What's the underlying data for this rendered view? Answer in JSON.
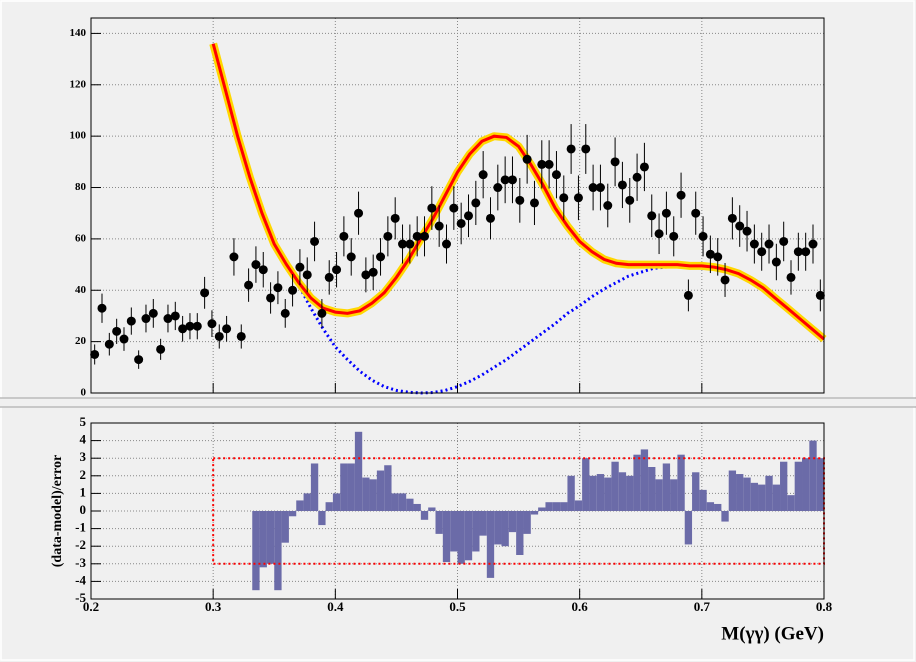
{
  "chart_data": [
    {
      "type": "scatter",
      "color": "#000000",
      "bins": [
        0.2,
        0.206,
        0.212,
        0.218,
        0.224,
        0.23,
        0.236,
        0.242,
        0.248,
        0.254,
        0.26,
        0.266,
        0.272,
        0.278,
        0.284,
        0.29,
        0.296,
        0.302,
        0.308,
        0.314,
        0.32,
        0.326,
        0.332,
        0.338,
        0.344,
        0.35,
        0.356,
        0.362,
        0.368,
        0.374,
        0.38,
        0.386,
        0.392,
        0.398,
        0.404,
        0.41,
        0.416,
        0.422,
        0.428,
        0.434,
        0.44,
        0.446,
        0.452,
        0.458,
        0.464,
        0.47,
        0.476,
        0.482,
        0.488,
        0.494,
        0.5,
        0.506,
        0.512,
        0.518,
        0.524,
        0.53,
        0.536,
        0.542,
        0.548,
        0.554,
        0.56,
        0.566,
        0.572,
        0.578,
        0.584,
        0.59,
        0.596,
        0.602,
        0.608,
        0.614,
        0.62,
        0.626,
        0.632,
        0.638,
        0.644,
        0.65,
        0.656,
        0.662,
        0.668,
        0.674,
        0.68,
        0.686,
        0.692,
        0.698,
        0.704,
        0.71,
        0.716,
        0.722,
        0.728,
        0.734,
        0.74,
        0.746,
        0.752,
        0.758,
        0.764,
        0.77,
        0.776,
        0.782,
        0.788,
        0.794,
        0.8
      ],
      "values": [
        15,
        33,
        19,
        24,
        21,
        28,
        13,
        29,
        31,
        17,
        29,
        30,
        25,
        26,
        26,
        39,
        27,
        22,
        25,
        53,
        22,
        42,
        50,
        48,
        37,
        41,
        31,
        40,
        49,
        46,
        59,
        31,
        45,
        48,
        61,
        53,
        70,
        46,
        47,
        53,
        61,
        68,
        58,
        58,
        61,
        61,
        72,
        65,
        58,
        72,
        66,
        69,
        74,
        85,
        68,
        80,
        83,
        83,
        75,
        91,
        74,
        89,
        89,
        85,
        76,
        95,
        76,
        95,
        80,
        80,
        73,
        90,
        81,
        75,
        84,
        88,
        69,
        62,
        70,
        61,
        77,
        38,
        70,
        61,
        54,
        53,
        44,
        68,
        65,
        63,
        58,
        55,
        58,
        51,
        59,
        45,
        55,
        55,
        58,
        38
      ],
      "errors": [
        3.9,
        5.7,
        4.4,
        4.9,
        4.6,
        5.3,
        3.6,
        5.4,
        5.6,
        4.1,
        5.4,
        5.5,
        5.0,
        5.1,
        5.1,
        6.2,
        5.2,
        4.7,
        5.0,
        7.3,
        4.7,
        6.5,
        7.1,
        6.9,
        6.1,
        6.4,
        5.6,
        6.3,
        7.0,
        6.8,
        7.7,
        5.6,
        6.7,
        6.9,
        7.8,
        7.3,
        8.4,
        6.8,
        6.9,
        7.3,
        7.8,
        8.2,
        7.6,
        7.6,
        7.8,
        7.8,
        8.5,
        8.1,
        7.6,
        8.5,
        8.1,
        8.3,
        8.6,
        9.2,
        8.2,
        8.9,
        9.1,
        9.1,
        8.7,
        9.5,
        8.6,
        9.4,
        9.4,
        9.2,
        8.7,
        9.7,
        8.7,
        9.7,
        8.9,
        8.9,
        8.5,
        9.5,
        9.0,
        8.7,
        9.2,
        9.4,
        8.3,
        7.9,
        8.4,
        7.8,
        8.8,
        6.2,
        8.4,
        7.8,
        7.3,
        7.3,
        6.6,
        8.2,
        8.1,
        7.9,
        7.6,
        7.4,
        7.6,
        7.1,
        7.7,
        6.7,
        7.4,
        7.4,
        7.6,
        6.2
      ],
      "model_x": [
        0.3,
        0.31,
        0.32,
        0.33,
        0.34,
        0.35,
        0.36,
        0.37,
        0.38,
        0.39,
        0.4,
        0.41,
        0.42,
        0.43,
        0.44,
        0.45,
        0.46,
        0.47,
        0.48,
        0.49,
        0.5,
        0.51,
        0.52,
        0.53,
        0.54,
        0.55,
        0.56,
        0.57,
        0.58,
        0.59,
        0.6,
        0.61,
        0.62,
        0.63,
        0.64,
        0.65,
        0.66,
        0.67,
        0.68,
        0.69,
        0.7,
        0.71,
        0.72,
        0.73,
        0.74,
        0.75,
        0.76,
        0.77,
        0.78,
        0.79,
        0.8
      ],
      "curves": [
        {
          "color": "#0000ff",
          "dashed": true,
          "values": [
            136,
            118,
            100,
            84,
            70,
            58,
            50,
            42,
            33,
            25,
            18,
            13,
            8.5,
            5,
            2.5,
            1,
            0.3,
            0,
            0.2,
            1,
            2.5,
            4.5,
            7,
            10,
            13,
            16.5,
            20,
            23.5,
            27,
            31,
            34,
            37.5,
            40.5,
            43,
            45.5,
            47,
            48.5,
            49,
            49.5,
            49.5,
            49.5,
            49,
            48,
            46.5,
            44,
            41,
            37,
            33,
            29,
            25,
            21
          ]
        },
        {
          "color": "#ff0000",
          "band_color": "#ffd700",
          "dashed": false,
          "values": [
            136,
            118,
            100,
            84,
            70,
            58,
            50,
            43,
            37,
            33,
            31.5,
            31,
            32,
            35,
            39,
            45,
            52,
            60,
            68,
            77,
            86,
            93,
            98,
            100,
            99.5,
            96,
            89,
            81,
            72,
            65,
            59,
            55,
            52,
            50.5,
            50,
            50,
            50,
            50,
            50,
            49.5,
            49.5,
            49,
            48,
            46.5,
            44,
            41,
            37,
            33,
            29,
            25,
            21
          ]
        }
      ],
      "xlim": [
        0.2,
        0.8
      ],
      "xticks": [
        0.2,
        0.3,
        0.4,
        0.5,
        0.6,
        0.7,
        0.8
      ],
      "ylim": [
        0,
        146
      ],
      "yticks": [
        0,
        20,
        40,
        60,
        80,
        100,
        120,
        140
      ],
      "grid": true
    },
    {
      "type": "histogram",
      "color": "#6b6ba8",
      "bins": [
        0.2,
        0.206,
        0.212,
        0.218,
        0.224,
        0.23,
        0.236,
        0.242,
        0.248,
        0.254,
        0.26,
        0.266,
        0.272,
        0.278,
        0.284,
        0.29,
        0.296,
        0.302,
        0.308,
        0.314,
        0.32,
        0.326,
        0.332,
        0.338,
        0.344,
        0.35,
        0.356,
        0.362,
        0.368,
        0.374,
        0.38,
        0.386,
        0.392,
        0.398,
        0.404,
        0.41,
        0.416,
        0.422,
        0.428,
        0.434,
        0.44,
        0.446,
        0.452,
        0.458,
        0.464,
        0.47,
        0.476,
        0.482,
        0.488,
        0.494,
        0.5,
        0.506,
        0.512,
        0.518,
        0.524,
        0.53,
        0.536,
        0.542,
        0.548,
        0.554,
        0.56,
        0.566,
        0.572,
        0.578,
        0.584,
        0.59,
        0.596,
        0.602,
        0.608,
        0.614,
        0.62,
        0.626,
        0.632,
        0.638,
        0.644,
        0.65,
        0.656,
        0.662,
        0.668,
        0.674,
        0.68,
        0.686,
        0.692,
        0.698,
        0.704,
        0.71,
        0.716,
        0.722,
        0.728,
        0.734,
        0.74,
        0.746,
        0.752,
        0.758,
        0.764,
        0.77,
        0.776,
        0.782,
        0.788,
        0.794,
        0.8
      ],
      "values": [
        null,
        null,
        null,
        null,
        null,
        null,
        null,
        null,
        null,
        null,
        null,
        null,
        null,
        null,
        null,
        null,
        null,
        null,
        null,
        null,
        null,
        null,
        -4.5,
        -3.2,
        -3.0,
        -4.5,
        -1.8,
        -0.3,
        0.6,
        1.0,
        2.7,
        -0.8,
        0.5,
        1.0,
        2.7,
        2.7,
        4.5,
        1.9,
        1.8,
        2.3,
        2.6,
        1.0,
        1.0,
        0.7,
        0.4,
        -0.5,
        0.2,
        -1.3,
        -2.9,
        -2.3,
        -3.0,
        -2.8,
        -2.3,
        -1.4,
        -3.8,
        -1.9,
        -2.0,
        -1.2,
        -2.5,
        -1.3,
        -0.2,
        0.2,
        0.5,
        0.5,
        0.5,
        2.0,
        0.6,
        3.0,
        2.0,
        2.1,
        1.9,
        2.8,
        2.2,
        2.0,
        3.2,
        3.5,
        2.5,
        1.8,
        2.7,
        1.8,
        3.2,
        -1.9,
        2.2,
        1.2,
        0.5,
        0.4,
        -0.6,
        2.3,
        2.1,
        1.9,
        1.6,
        1.5,
        2.0,
        1.5,
        2.8,
        0.9,
        2.8,
        3.0,
        4.0,
        3.0
      ],
      "reference_box": {
        "x": [
          0.3,
          0.8
        ],
        "y": [
          -3,
          3
        ],
        "color": "#ff0000"
      },
      "xlim": [
        0.2,
        0.8
      ],
      "xticks": [
        0.2,
        0.3,
        0.4,
        0.5,
        0.6,
        0.7,
        0.8
      ],
      "ylim": [
        -5,
        5
      ],
      "yticks": [
        -5,
        -4,
        -3,
        -2,
        -1,
        0,
        1,
        2,
        3,
        4,
        5
      ],
      "grid": true,
      "xlabel": "M(γγ) (GeV)",
      "ylabel": "(data-model)/error"
    }
  ]
}
